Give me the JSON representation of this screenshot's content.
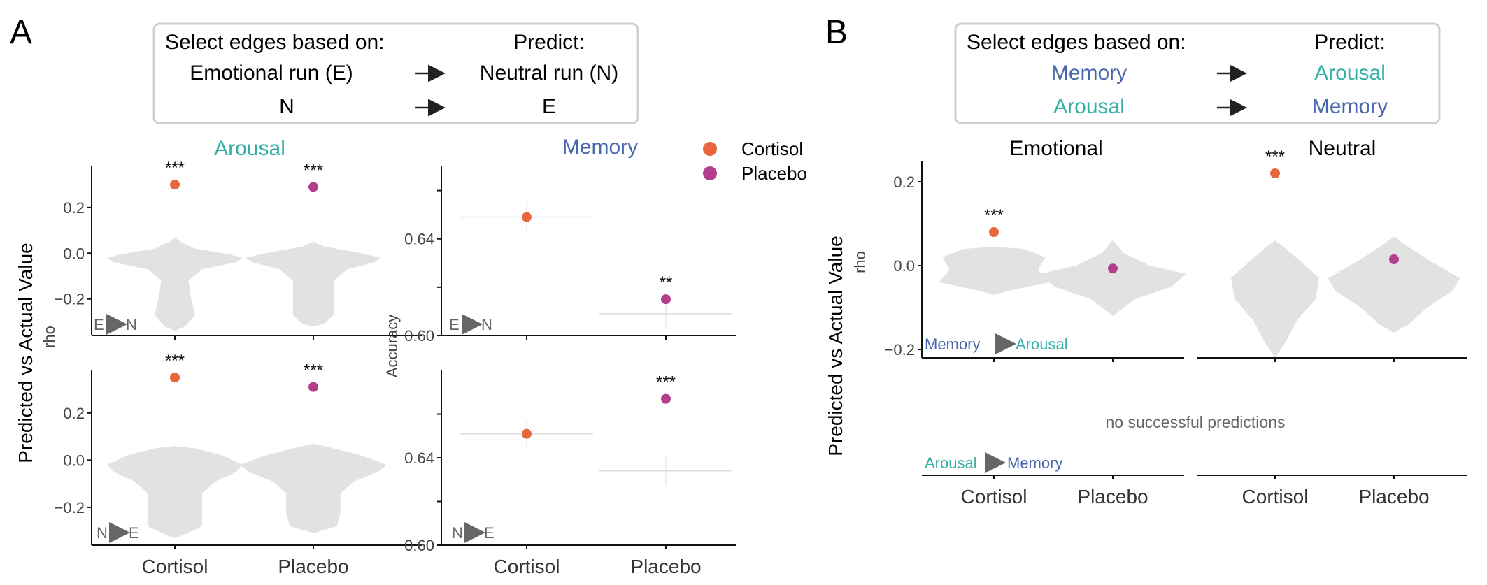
{
  "colors": {
    "cortisol": "#E8663D",
    "placebo": "#B33F8B",
    "arousal": "#35B0A6",
    "memory": "#4A66AE",
    "violin": "#E2E2E2",
    "axis": "#111111",
    "gray_text": "#666666"
  },
  "panel_a": {
    "letter": "A",
    "box": {
      "header_left": "Select edges based on:",
      "header_right": "Predict:",
      "rows": [
        {
          "from": "Emotional run (E)",
          "to": "Neutral run (N)"
        },
        {
          "from": "N",
          "to": "E"
        }
      ]
    },
    "arousal_title": "Arousal",
    "memory_title": "Memory",
    "ylabel_outer": "Predicted vs Actual Value",
    "ylabel_rho": "rho",
    "ylabel_accuracy": "Accuracy",
    "legend": [
      {
        "label": "Cortisol",
        "group": "cortisol"
      },
      {
        "label": "Placebo",
        "group": "placebo"
      }
    ]
  },
  "panel_b": {
    "letter": "B",
    "box": {
      "header_left": "Select edges based on:",
      "header_right": "Predict:",
      "rows": [
        {
          "from": "Memory",
          "to": "Arousal",
          "from_color": "memory",
          "to_color": "arousal"
        },
        {
          "from": "Arousal",
          "to": "Memory",
          "from_color": "arousal",
          "to_color": "memory"
        }
      ]
    },
    "facet_emotional": "Emotional",
    "facet_neutral": "Neutral",
    "ylabel_outer": "Predicted vs Actual Value",
    "ylabel_rho": "rho",
    "no_pred_text": "no successful predictions",
    "row1_label": {
      "from": "Memory",
      "to": "Arousal"
    },
    "row2_label": {
      "from": "Arousal",
      "to": "Memory"
    }
  },
  "chart_data": [
    {
      "id": "A-arousal-EN",
      "type": "scatter",
      "categories": [
        "Cortisol",
        "Placebo"
      ],
      "xtick_labels": [],
      "yticks": [
        0.2,
        0.0,
        -0.2
      ],
      "ytick_labels": [
        "0.2",
        "0.0",
        "−0.2"
      ],
      "ylim": [
        -0.36,
        0.38
      ],
      "points": [
        {
          "group": "cortisol",
          "x": "Cortisol",
          "y": 0.3,
          "sig": "***"
        },
        {
          "group": "placebo",
          "x": "Placebo",
          "y": 0.29,
          "sig": "***"
        }
      ],
      "null_distribution": "violin",
      "corner_label": {
        "from": "E",
        "to": "N"
      }
    },
    {
      "id": "A-arousal-NE",
      "type": "scatter",
      "categories": [
        "Cortisol",
        "Placebo"
      ],
      "xtick_labels": [
        "Cortisol",
        "Placebo"
      ],
      "yticks": [
        0.2,
        0.0,
        -0.2
      ],
      "ytick_labels": [
        "0.2",
        "0.0",
        "−0.2"
      ],
      "ylim": [
        -0.36,
        0.38
      ],
      "points": [
        {
          "group": "cortisol",
          "x": "Cortisol",
          "y": 0.35,
          "sig": "***"
        },
        {
          "group": "placebo",
          "x": "Placebo",
          "y": 0.31,
          "sig": "***"
        }
      ],
      "null_distribution": "violin",
      "corner_label": {
        "from": "N",
        "to": "E"
      }
    },
    {
      "id": "A-memory-EN",
      "type": "scatter",
      "categories": [
        "Cortisol",
        "Placebo"
      ],
      "xtick_labels": [],
      "yticks": [
        0.64,
        0.6
      ],
      "ytick_labels": [
        "0.64",
        "0.60"
      ],
      "ylim": [
        0.6,
        0.67
      ],
      "points": [
        {
          "group": "cortisol",
          "x": "Cortisol",
          "y": 0.649,
          "sig": ""
        },
        {
          "group": "placebo",
          "x": "Placebo",
          "y": 0.615,
          "sig": "**"
        }
      ],
      "null_medians": [
        {
          "x": "Cortisol",
          "y": 0.649
        },
        {
          "x": "Placebo",
          "y": 0.609
        }
      ],
      "corner_label": {
        "from": "E",
        "to": "N"
      }
    },
    {
      "id": "A-memory-NE",
      "type": "scatter",
      "categories": [
        "Cortisol",
        "Placebo"
      ],
      "xtick_labels": [
        "Cortisol",
        "Placebo"
      ],
      "yticks": [
        0.64,
        0.6
      ],
      "ytick_labels": [
        "0.64",
        "0.60"
      ],
      "ylim": [
        0.6,
        0.68
      ],
      "points": [
        {
          "group": "cortisol",
          "x": "Cortisol",
          "y": 0.651,
          "sig": ""
        },
        {
          "group": "placebo",
          "x": "Placebo",
          "y": 0.667,
          "sig": "***"
        }
      ],
      "null_medians": [
        {
          "x": "Cortisol",
          "y": 0.651
        },
        {
          "x": "Placebo",
          "y": 0.634
        }
      ],
      "corner_label": {
        "from": "N",
        "to": "E"
      }
    },
    {
      "id": "B-emotional",
      "type": "scatter",
      "categories": [
        "Cortisol",
        "Placebo"
      ],
      "yticks": [
        0.2,
        0.0,
        -0.2
      ],
      "ytick_labels": [
        "0.2",
        "0.0",
        "−0.2"
      ],
      "ylim": [
        -0.22,
        0.25
      ],
      "points": [
        {
          "group": "cortisol",
          "x": "Cortisol",
          "y": 0.08,
          "sig": "***"
        },
        {
          "group": "placebo",
          "x": "Placebo",
          "y": -0.007,
          "sig": ""
        }
      ],
      "null_distribution": "violin"
    },
    {
      "id": "B-neutral",
      "type": "scatter",
      "categories": [
        "Cortisol",
        "Placebo"
      ],
      "ylim": [
        -0.22,
        0.25
      ],
      "points": [
        {
          "group": "cortisol",
          "x": "Cortisol",
          "y": 0.22,
          "sig": "***"
        },
        {
          "group": "placebo",
          "x": "Placebo",
          "y": 0.015,
          "sig": ""
        }
      ],
      "null_distribution": "violin"
    },
    {
      "id": "B-row2",
      "type": "scatter",
      "facets": [
        "Emotional",
        "Neutral"
      ],
      "categories": [
        "Cortisol",
        "Placebo"
      ],
      "xtick_labels": [
        "Cortisol",
        "Placebo",
        "Cortisol",
        "Placebo"
      ],
      "points": []
    }
  ]
}
